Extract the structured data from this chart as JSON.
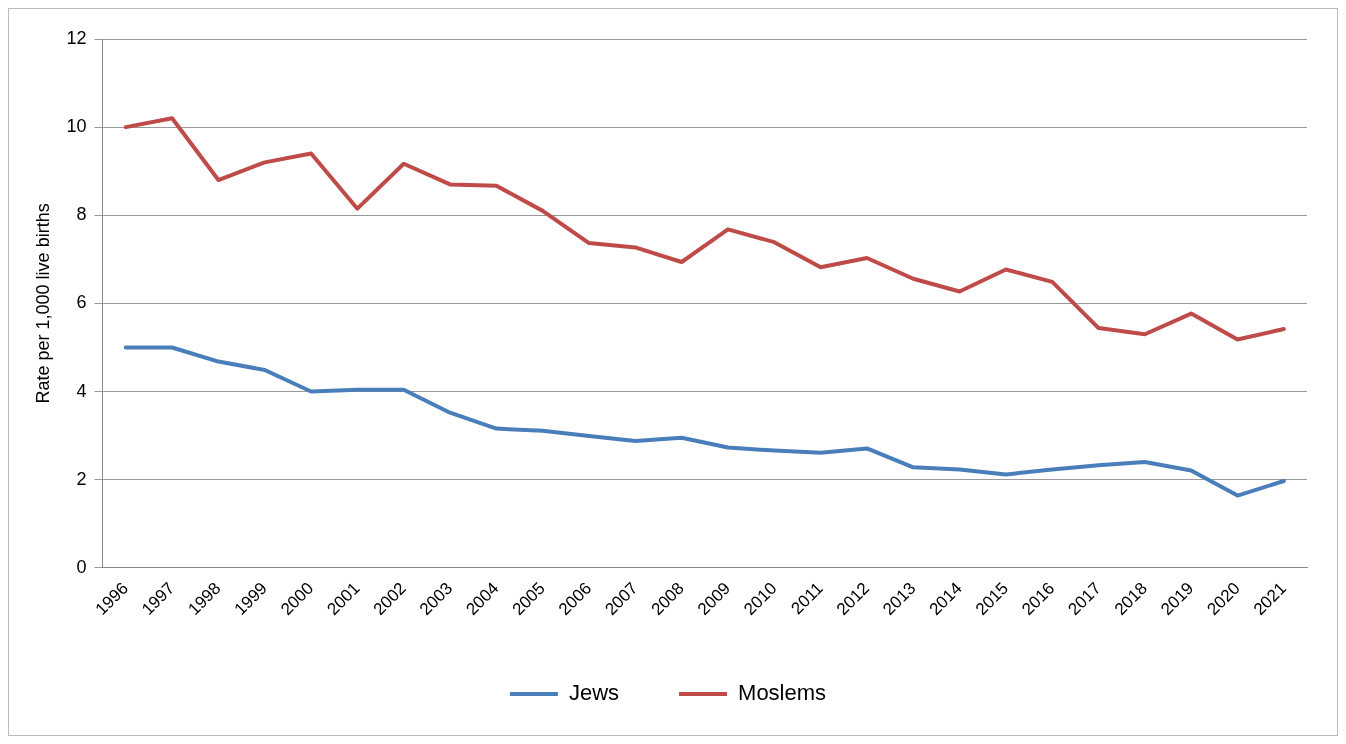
{
  "chart_data": {
    "type": "line",
    "ylabel": "Rate per 1,000 live births",
    "categories": [
      "1996",
      "1997",
      "1998",
      "1999",
      "2000",
      "2001",
      "2002",
      "2003",
      "2004",
      "2005",
      "2006",
      "2007",
      "2008",
      "2009",
      "2010",
      "2011",
      "2012",
      "2013",
      "2014",
      "2015",
      "2016",
      "2017",
      "2018",
      "2019",
      "2020",
      "2021"
    ],
    "series": [
      {
        "name": "Jews",
        "color": "#4a7ebb",
        "values": [
          5.0,
          5.0,
          4.68,
          4.49,
          4.0,
          4.04,
          4.04,
          3.52,
          3.16,
          3.11,
          2.99,
          2.88,
          2.95,
          2.73,
          2.66,
          2.61,
          2.71,
          2.28,
          2.23,
          2.12,
          2.23,
          2.33,
          2.4,
          2.21,
          1.64,
          1.97
        ]
      },
      {
        "name": "Moslems",
        "color": "#be4b48",
        "values": [
          10.0,
          10.2,
          8.8,
          9.2,
          9.4,
          8.15,
          9.17,
          8.7,
          8.67,
          8.1,
          7.37,
          7.27,
          6.94,
          7.68,
          7.39,
          6.82,
          7.03,
          6.56,
          6.27,
          6.77,
          6.49,
          5.44,
          5.3,
          5.77,
          5.18,
          5.42
        ]
      }
    ],
    "ylim": [
      0,
      12
    ],
    "yticks": [
      0,
      2,
      4,
      6,
      8,
      10,
      12
    ],
    "grid": "y",
    "legend": "bottom",
    "marker": "none",
    "line_style": "solid"
  }
}
